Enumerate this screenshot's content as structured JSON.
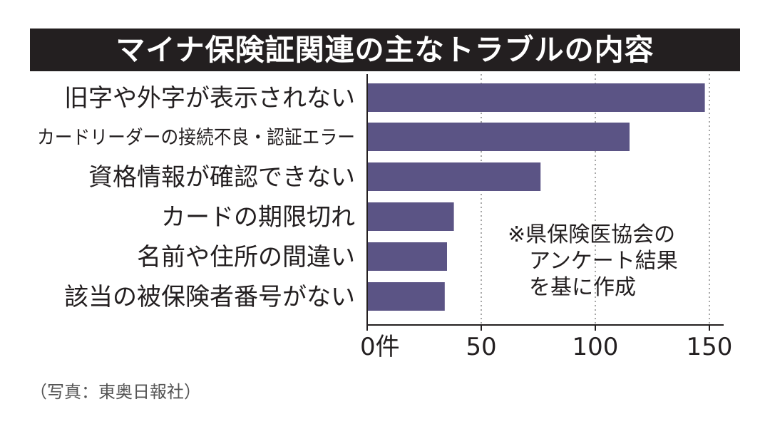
{
  "chart_data": {
    "type": "bar",
    "orientation": "horizontal",
    "title": "マイナ保険証関連の主なトラブルの内容",
    "categories": [
      "旧字や外字が表示されない",
      "カードリーダーの接続不良・認証エラー",
      "資格情報が確認できない",
      "カードの期限切れ",
      "名前や住所の間違い",
      "該当の被保険者番号がない"
    ],
    "values": [
      148,
      115,
      76,
      38,
      35,
      34
    ],
    "xlim": [
      0,
      150
    ],
    "x_ticks": [
      0,
      50,
      100,
      150
    ],
    "x_tick_labels": [
      "0件",
      "50",
      "100",
      "150"
    ],
    "grid": "vertical dotted",
    "bar_color": "#5b5485",
    "note": [
      "※県保険医協会の",
      "アンケート結果",
      "を基に作成"
    ]
  },
  "caption": "（写真：東奥日報社）"
}
